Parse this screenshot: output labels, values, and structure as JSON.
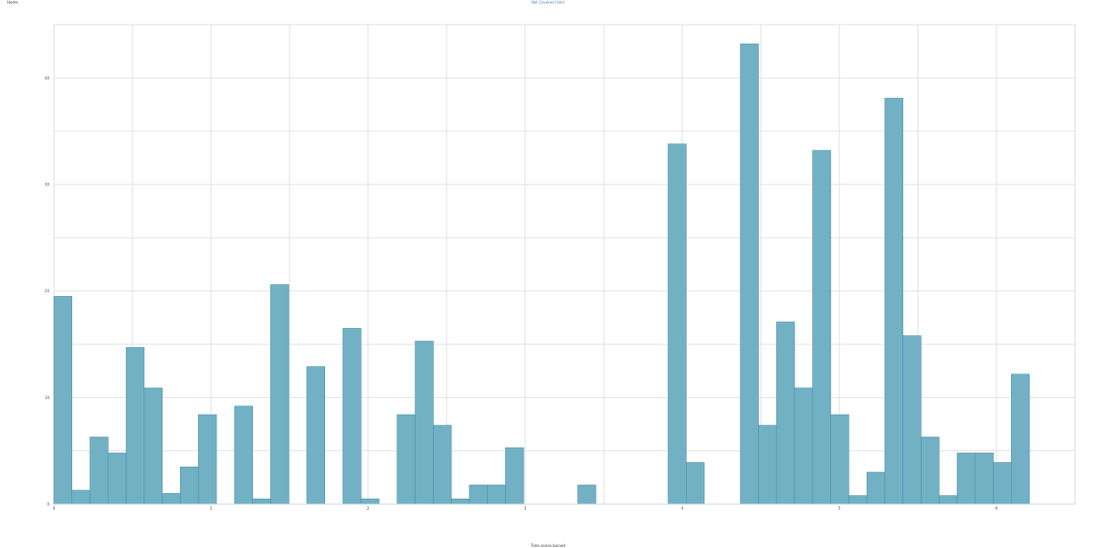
{
  "header": {
    "home_label": "Home"
  },
  "chart_data": {
    "type": "bar",
    "title": "Not Covered (link)",
    "xlabel": "Time series binned",
    "ylabel": "",
    "bin_width": 0.115,
    "x_start": 0,
    "values": [
      19.5,
      1.3,
      6.3,
      4.8,
      14.7,
      10.9,
      1.0,
      3.5,
      8.4,
      0,
      9.2,
      0.5,
      20.6,
      0,
      12.9,
      0,
      16.5,
      0.5,
      0,
      8.4,
      15.3,
      7.4,
      0.5,
      1.8,
      1.8,
      5.3,
      0,
      0,
      0,
      1.8,
      0,
      0,
      0,
      0,
      33.8,
      3.9,
      0,
      0,
      43.2,
      7.4,
      17.1,
      10.9,
      33.2,
      8.4,
      0.8,
      3.0,
      38.1,
      15.8,
      6.3,
      0.8,
      4.8,
      4.8,
      3.9,
      12.2
    ],
    "xlim": [
      0,
      6.5
    ],
    "ylim": [
      0,
      45
    ],
    "x_ticks": [
      0,
      1,
      2,
      3,
      4,
      5,
      6
    ],
    "x_tick_labels": [
      "0",
      "1",
      "2",
      "3",
      "4",
      "5",
      "6"
    ],
    "y_ticks": [
      0,
      10,
      20,
      30,
      40
    ],
    "y_tick_labels": [
      "0",
      "10",
      "20",
      "30",
      "40"
    ],
    "grid": true,
    "bar_color": "#72b1c4",
    "bar_edge_color": "#4a8fb0"
  }
}
